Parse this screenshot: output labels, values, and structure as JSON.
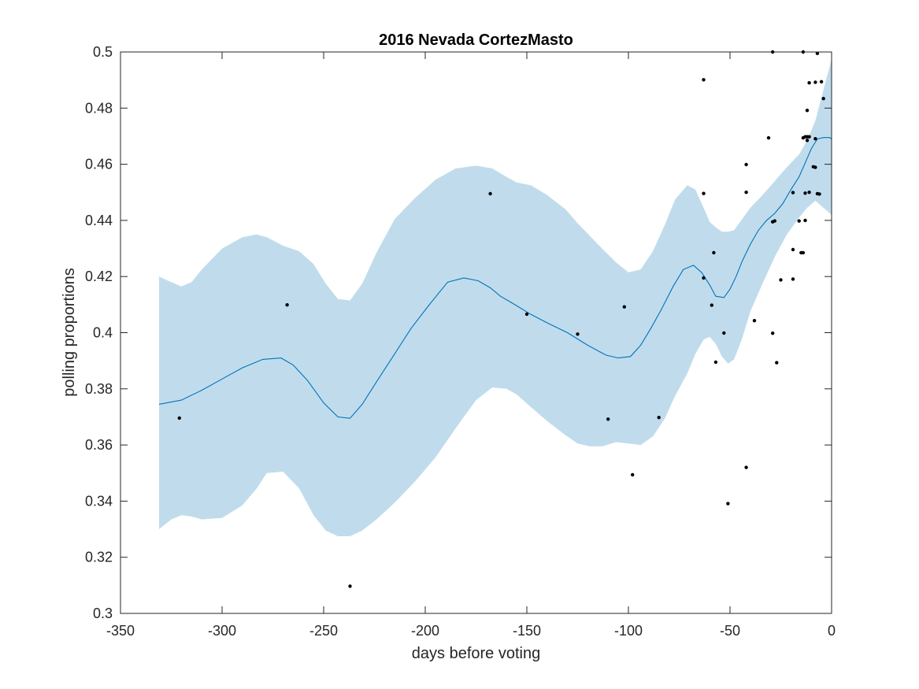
{
  "chart_data": {
    "type": "line",
    "title": "2016 Nevada CortezMasto",
    "xlabel": "days before voting",
    "ylabel": "polling proportions",
    "xlim": [
      -350,
      0
    ],
    "ylim": [
      0.3,
      0.5
    ],
    "xticks": [
      -350,
      -300,
      -250,
      -200,
      -150,
      -100,
      -50,
      0
    ],
    "xtick_labels": [
      "-350",
      "-300",
      "-250",
      "-200",
      "-150",
      "-100",
      "-50",
      "0"
    ],
    "yticks": [
      0.3,
      0.32,
      0.34,
      0.36,
      0.38,
      0.4,
      0.42,
      0.44,
      0.46,
      0.48,
      0.5
    ],
    "ytick_labels": [
      "0.3",
      "0.32",
      "0.34",
      "0.36",
      "0.38",
      "0.4",
      "0.42",
      "0.44",
      "0.46",
      "0.48",
      "0.5"
    ],
    "grid": false,
    "colors": {
      "fit_line": "#0072bd",
      "band": "#c0dcec",
      "points": "#000000",
      "axes": "#262626"
    },
    "fit": {
      "x": [
        -331,
        -320,
        -310,
        -300,
        -290,
        -280,
        -271,
        -265,
        -258,
        -250,
        -243,
        -237,
        -231,
        -224,
        -215,
        -207,
        -198,
        -189,
        -181,
        -174,
        -168,
        -163,
        -157,
        -148,
        -140,
        -130,
        -120,
        -111,
        -105,
        -99,
        -94,
        -89,
        -84,
        -78,
        -73,
        -68,
        -64,
        -60,
        -57,
        -53,
        -50,
        -47,
        -44,
        -40,
        -36,
        -32,
        -28,
        -24,
        -20,
        -16,
        -13,
        -10,
        -7,
        -4,
        -1,
        0
      ],
      "y": [
        0.3745,
        0.376,
        0.3795,
        0.3835,
        0.3875,
        0.3905,
        0.391,
        0.3885,
        0.383,
        0.375,
        0.37,
        0.3695,
        0.3745,
        0.3825,
        0.3925,
        0.4015,
        0.41,
        0.418,
        0.4195,
        0.4185,
        0.416,
        0.413,
        0.4105,
        0.4065,
        0.4035,
        0.4,
        0.3955,
        0.392,
        0.391,
        0.3915,
        0.3955,
        0.4015,
        0.408,
        0.4165,
        0.4225,
        0.424,
        0.4215,
        0.417,
        0.413,
        0.4125,
        0.4155,
        0.42,
        0.4255,
        0.4315,
        0.4365,
        0.44,
        0.4425,
        0.446,
        0.451,
        0.4555,
        0.4605,
        0.4655,
        0.469,
        0.4695,
        0.4695,
        0.469
      ]
    },
    "confidence_band": {
      "x": [
        -331,
        -325,
        -320,
        -315,
        -310,
        -300,
        -290,
        -283,
        -278,
        -270,
        -262,
        -255,
        -249,
        -243,
        -237,
        -231,
        -224,
        -215,
        -205,
        -195,
        -185,
        -175,
        -167,
        -160,
        -155,
        -148,
        -140,
        -131,
        -125,
        -119,
        -113,
        -106,
        -100,
        -94,
        -88,
        -82,
        -77,
        -71,
        -67,
        -63,
        -60,
        -57,
        -54,
        -51,
        -48,
        -44,
        -40,
        -34,
        -28,
        -22,
        -16,
        -12,
        -8,
        -4,
        0
      ],
      "upper": [
        0.42,
        0.418,
        0.4165,
        0.418,
        0.4225,
        0.43,
        0.434,
        0.435,
        0.434,
        0.431,
        0.429,
        0.4245,
        0.4175,
        0.412,
        0.4115,
        0.4175,
        0.4285,
        0.4405,
        0.448,
        0.4545,
        0.4585,
        0.4595,
        0.4585,
        0.4555,
        0.4535,
        0.4525,
        0.449,
        0.444,
        0.439,
        0.4345,
        0.43,
        0.425,
        0.4215,
        0.4225,
        0.429,
        0.4385,
        0.4475,
        0.4525,
        0.451,
        0.4445,
        0.4395,
        0.4375,
        0.436,
        0.436,
        0.4365,
        0.4405,
        0.4445,
        0.449,
        0.454,
        0.459,
        0.4635,
        0.4685,
        0.4755,
        0.4865,
        0.4975
      ],
      "lower": [
        0.33,
        0.3335,
        0.335,
        0.3345,
        0.3335,
        0.334,
        0.3385,
        0.3445,
        0.35,
        0.3505,
        0.3445,
        0.335,
        0.3295,
        0.3275,
        0.3275,
        0.3295,
        0.3335,
        0.3395,
        0.347,
        0.3555,
        0.366,
        0.376,
        0.3805,
        0.38,
        0.378,
        0.3735,
        0.3685,
        0.3635,
        0.3605,
        0.3595,
        0.3595,
        0.361,
        0.3605,
        0.36,
        0.363,
        0.3695,
        0.3775,
        0.3855,
        0.3925,
        0.3975,
        0.3985,
        0.396,
        0.3915,
        0.389,
        0.3905,
        0.398,
        0.4075,
        0.4175,
        0.427,
        0.435,
        0.441,
        0.4445,
        0.447,
        0.4445,
        0.442
      ]
    },
    "points": [
      [
        -321,
        0.3696
      ],
      [
        -268,
        0.4099
      ],
      [
        -237,
        0.3097
      ],
      [
        -168,
        0.4495
      ],
      [
        -150,
        0.4066
      ],
      [
        -125,
        0.3995
      ],
      [
        -110,
        0.3692
      ],
      [
        -102,
        0.4092
      ],
      [
        -98,
        0.3494
      ],
      [
        -85,
        0.3698
      ],
      [
        -63,
        0.4901
      ],
      [
        -63,
        0.4496
      ],
      [
        -63,
        0.4195
      ],
      [
        -59,
        0.4098
      ],
      [
        -58,
        0.4285
      ],
      [
        -57,
        0.3895
      ],
      [
        -53,
        0.3999
      ],
      [
        -51,
        0.3391
      ],
      [
        -42,
        0.4599
      ],
      [
        -42,
        0.45
      ],
      [
        -42,
        0.352
      ],
      [
        -38,
        0.4043
      ],
      [
        -31,
        0.4694
      ],
      [
        -29,
        0.5
      ],
      [
        -29,
        0.4395
      ],
      [
        -29,
        0.3998
      ],
      [
        -28,
        0.4398
      ],
      [
        -27,
        0.3893
      ],
      [
        -25,
        0.4188
      ],
      [
        -19,
        0.4499
      ],
      [
        -19,
        0.4296
      ],
      [
        -19,
        0.4191
      ],
      [
        -16,
        0.4398
      ],
      [
        -15,
        0.4285
      ],
      [
        -14,
        0.5
      ],
      [
        -14,
        0.4694
      ],
      [
        -14,
        0.4285
      ],
      [
        -13,
        0.4698
      ],
      [
        -13,
        0.4497
      ],
      [
        -13,
        0.44
      ],
      [
        -12,
        0.4792
      ],
      [
        -12,
        0.4698
      ],
      [
        -12,
        0.4685
      ],
      [
        -11,
        0.489
      ],
      [
        -11,
        0.4698
      ],
      [
        -11,
        0.45
      ],
      [
        -9,
        0.4591
      ],
      [
        -8,
        0.4892
      ],
      [
        -8,
        0.4691
      ],
      [
        -8,
        0.4589
      ],
      [
        -7,
        0.4995
      ],
      [
        -7,
        0.4495
      ],
      [
        -6,
        0.4494
      ],
      [
        -5,
        0.4894
      ],
      [
        -4,
        0.4834
      ]
    ]
  }
}
